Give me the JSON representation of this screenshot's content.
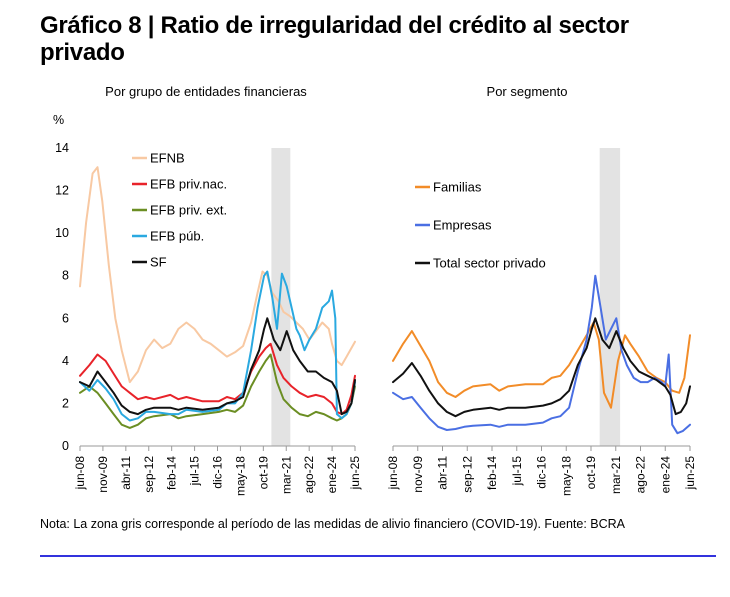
{
  "figure": {
    "title": "Gráfico 8 | Ratio de irregularidad del crédito al sector privado",
    "note": "Nota: La zona gris corresponde al período de las medidas de alivio financiero (COVID-19). Fuente: BCRA"
  },
  "chart_data": [
    {
      "type": "line",
      "subtitle": "Por grupo de entidades financieras",
      "yunit": "%",
      "ylim": [
        0,
        14
      ],
      "yticks": [
        "0",
        "2",
        "4",
        "6",
        "8",
        "10",
        "12",
        "14"
      ],
      "xlim": [
        2008.42,
        2025.42
      ],
      "xticks": [
        "jun-08",
        "nov-09",
        "abr-11",
        "sep-12",
        "feb-14",
        "jul-15",
        "dic-16",
        "may-18",
        "oct-19",
        "mar-21",
        "ago-22",
        "ene-24",
        "jun-25"
      ],
      "shaded_period": [
        2020.25,
        2021.42
      ],
      "grid": false,
      "legend_position": "top-left",
      "series": [
        {
          "name": "EFNB",
          "color": "#f8c9a3",
          "x": [
            2008.42,
            2008.8,
            2009.2,
            2009.5,
            2009.8,
            2010.2,
            2010.6,
            2011.0,
            2011.5,
            2012.0,
            2012.5,
            2013.0,
            2013.5,
            2014.0,
            2014.5,
            2015.0,
            2015.5,
            2016.0,
            2016.5,
            2017.0,
            2017.5,
            2018.0,
            2018.5,
            2019.0,
            2019.4,
            2019.7,
            2020.0,
            2020.3,
            2020.7,
            2021.0,
            2021.4,
            2021.8,
            2022.2,
            2022.6,
            2023.0,
            2023.4,
            2023.8,
            2024.0,
            2024.3,
            2024.6,
            2024.9,
            2025.2,
            2025.42
          ],
          "values": [
            7.5,
            10.5,
            12.8,
            13.1,
            11.5,
            8.5,
            6.0,
            4.5,
            3.0,
            3.5,
            4.5,
            5.0,
            4.6,
            4.8,
            5.5,
            5.8,
            5.5,
            5.0,
            4.8,
            4.5,
            4.2,
            4.4,
            4.7,
            5.8,
            7.2,
            8.2,
            8.0,
            7.2,
            6.8,
            6.3,
            6.1,
            5.8,
            5.5,
            5.0,
            5.4,
            5.8,
            5.5,
            4.8,
            4.0,
            3.8,
            4.2,
            4.6,
            4.9
          ]
        },
        {
          "name": "EFB priv.nac.",
          "color": "#e8232a",
          "x": [
            2008.42,
            2009.0,
            2009.5,
            2010.0,
            2010.5,
            2011.0,
            2011.5,
            2012.0,
            2012.5,
            2013.0,
            2014.0,
            2014.5,
            2015.0,
            2016.0,
            2017.0,
            2017.5,
            2018.0,
            2018.5,
            2019.0,
            2019.5,
            2019.9,
            2020.2,
            2020.6,
            2021.0,
            2021.5,
            2022.0,
            2022.5,
            2023.0,
            2023.5,
            2024.0,
            2024.3,
            2024.6,
            2024.9,
            2025.2,
            2025.42
          ],
          "values": [
            3.3,
            3.8,
            4.3,
            4.0,
            3.4,
            2.8,
            2.5,
            2.2,
            2.3,
            2.2,
            2.4,
            2.2,
            2.3,
            2.1,
            2.1,
            2.3,
            2.2,
            2.5,
            3.5,
            4.2,
            4.6,
            4.8,
            3.8,
            3.2,
            2.8,
            2.5,
            2.3,
            2.4,
            2.3,
            2.0,
            1.6,
            1.5,
            1.7,
            2.4,
            3.3
          ]
        },
        {
          "name": "EFB priv. ext.",
          "color": "#6b8e23",
          "x": [
            2008.42,
            2009.0,
            2009.5,
            2010.0,
            2010.5,
            2011.0,
            2011.5,
            2012.0,
            2012.5,
            2013.0,
            2014.0,
            2014.5,
            2015.0,
            2016.0,
            2017.0,
            2017.5,
            2018.0,
            2018.5,
            2019.0,
            2019.5,
            2019.9,
            2020.2,
            2020.6,
            2021.0,
            2021.5,
            2022.0,
            2022.5,
            2023.0,
            2023.5,
            2024.0,
            2024.3,
            2024.6,
            2024.9,
            2025.2,
            2025.42
          ],
          "values": [
            2.5,
            2.8,
            2.5,
            2.0,
            1.5,
            1.0,
            0.85,
            1.0,
            1.3,
            1.4,
            1.5,
            1.3,
            1.4,
            1.5,
            1.6,
            1.7,
            1.6,
            1.9,
            2.8,
            3.5,
            4.0,
            4.3,
            3.0,
            2.2,
            1.8,
            1.5,
            1.4,
            1.6,
            1.5,
            1.3,
            1.2,
            1.3,
            1.5,
            2.0,
            2.8
          ]
        },
        {
          "name": "EFB púb.",
          "color": "#2aa9e0",
          "x": [
            2008.42,
            2009.0,
            2009.5,
            2010.0,
            2010.5,
            2011.0,
            2011.5,
            2012.0,
            2012.5,
            2013.0,
            2014.0,
            2014.5,
            2015.0,
            2016.0,
            2017.0,
            2017.5,
            2018.0,
            2018.5,
            2019.0,
            2019.4,
            2019.8,
            2020.0,
            2020.3,
            2020.6,
            2020.9,
            2021.2,
            2021.5,
            2021.8,
            2022.0,
            2022.3,
            2022.6,
            2023.0,
            2023.4,
            2023.8,
            2024.0,
            2024.2,
            2024.3,
            2024.6,
            2024.9,
            2025.2,
            2025.42
          ],
          "values": [
            3.0,
            2.6,
            3.1,
            2.7,
            2.2,
            1.5,
            1.2,
            1.3,
            1.6,
            1.6,
            1.5,
            1.5,
            1.7,
            1.6,
            1.7,
            2.0,
            2.0,
            2.5,
            4.5,
            6.5,
            8.0,
            8.2,
            7.0,
            5.5,
            8.1,
            7.5,
            6.5,
            5.5,
            5.2,
            4.5,
            5.0,
            5.5,
            6.5,
            6.8,
            7.3,
            6.0,
            1.5,
            1.3,
            1.5,
            2.0,
            3.0
          ]
        },
        {
          "name": "SF",
          "color": "#111111",
          "x": [
            2008.42,
            2009.0,
            2009.5,
            2010.0,
            2010.5,
            2011.0,
            2011.5,
            2012.0,
            2012.5,
            2013.0,
            2014.0,
            2014.5,
            2015.0,
            2016.0,
            2017.0,
            2017.5,
            2018.0,
            2018.5,
            2019.0,
            2019.5,
            2019.8,
            2020.0,
            2020.4,
            2020.8,
            2021.2,
            2021.6,
            2022.0,
            2022.5,
            2023.0,
            2023.5,
            2024.0,
            2024.3,
            2024.6,
            2024.9,
            2025.2,
            2025.42
          ],
          "values": [
            3.0,
            2.8,
            3.5,
            3.0,
            2.5,
            1.9,
            1.6,
            1.5,
            1.7,
            1.8,
            1.8,
            1.7,
            1.8,
            1.7,
            1.8,
            2.0,
            2.1,
            2.3,
            3.6,
            4.5,
            5.5,
            6.0,
            5.0,
            4.5,
            5.4,
            4.5,
            4.0,
            3.5,
            3.5,
            3.2,
            3.0,
            2.6,
            1.5,
            1.6,
            2.0,
            3.1
          ]
        }
      ]
    },
    {
      "type": "line",
      "subtitle": "Por segmento",
      "ylim": [
        0,
        14
      ],
      "xlim": [
        2008.42,
        2025.42
      ],
      "xticks": [
        "jun-08",
        "nov-09",
        "abr-11",
        "sep-12",
        "feb-14",
        "jul-15",
        "dic-16",
        "may-18",
        "oct-19",
        "mar-21",
        "ago-22",
        "ene-24",
        "jun-25"
      ],
      "shaded_period": [
        2020.25,
        2021.42
      ],
      "grid": false,
      "legend_position": "top-left",
      "series": [
        {
          "name": "Familias",
          "color": "#f28c28",
          "x": [
            2008.42,
            2009.0,
            2009.5,
            2010.0,
            2010.5,
            2011.0,
            2011.5,
            2012.0,
            2012.5,
            2013.0,
            2014.0,
            2014.5,
            2015.0,
            2016.0,
            2017.0,
            2017.5,
            2018.0,
            2018.5,
            2019.0,
            2019.5,
            2019.9,
            2020.2,
            2020.5,
            2020.9,
            2021.3,
            2021.7,
            2022.0,
            2022.5,
            2023.0,
            2023.5,
            2024.0,
            2024.4,
            2024.8,
            2025.1,
            2025.42
          ],
          "values": [
            4.0,
            4.8,
            5.4,
            4.7,
            4.0,
            3.0,
            2.5,
            2.3,
            2.6,
            2.8,
            2.9,
            2.6,
            2.8,
            2.9,
            2.9,
            3.2,
            3.3,
            3.8,
            4.5,
            5.2,
            5.8,
            5.0,
            2.5,
            1.8,
            4.0,
            5.2,
            4.8,
            4.2,
            3.5,
            3.2,
            3.0,
            2.6,
            2.5,
            3.2,
            5.2
          ]
        },
        {
          "name": "Empresas",
          "color": "#4a6fe3",
          "x": [
            2008.42,
            2009.0,
            2009.5,
            2010.0,
            2010.5,
            2011.0,
            2011.5,
            2012.0,
            2012.5,
            2013.0,
            2014.0,
            2014.5,
            2015.0,
            2016.0,
            2017.0,
            2017.5,
            2018.0,
            2018.5,
            2019.0,
            2019.5,
            2019.8,
            2020.0,
            2020.3,
            2020.6,
            2020.9,
            2021.2,
            2021.5,
            2021.8,
            2022.2,
            2022.6,
            2023.0,
            2023.4,
            2023.8,
            2024.0,
            2024.2,
            2024.4,
            2024.7,
            2025.0,
            2025.42
          ],
          "values": [
            2.5,
            2.2,
            2.3,
            1.8,
            1.3,
            0.9,
            0.75,
            0.8,
            0.9,
            0.95,
            1.0,
            0.9,
            1.0,
            1.0,
            1.1,
            1.3,
            1.4,
            1.8,
            3.5,
            5.0,
            6.5,
            8.0,
            6.5,
            5.0,
            5.5,
            6.0,
            4.5,
            3.8,
            3.2,
            3.0,
            3.0,
            3.2,
            3.0,
            2.8,
            4.3,
            1.0,
            0.6,
            0.7,
            1.0
          ]
        },
        {
          "name": "Total sector privado",
          "color": "#111111",
          "x": [
            2008.42,
            2009.0,
            2009.5,
            2010.0,
            2010.5,
            2011.0,
            2011.5,
            2012.0,
            2012.5,
            2013.0,
            2014.0,
            2014.5,
            2015.0,
            2016.0,
            2017.0,
            2017.5,
            2018.0,
            2018.5,
            2019.0,
            2019.5,
            2019.8,
            2020.0,
            2020.4,
            2020.8,
            2021.2,
            2021.6,
            2022.0,
            2022.5,
            2023.0,
            2023.5,
            2024.0,
            2024.3,
            2024.6,
            2024.9,
            2025.2,
            2025.42
          ],
          "values": [
            3.0,
            3.4,
            3.9,
            3.3,
            2.6,
            2.0,
            1.6,
            1.4,
            1.6,
            1.7,
            1.8,
            1.7,
            1.8,
            1.8,
            1.9,
            2.0,
            2.2,
            2.6,
            3.8,
            4.6,
            5.5,
            6.0,
            5.0,
            4.6,
            5.4,
            4.6,
            4.0,
            3.5,
            3.3,
            3.1,
            2.8,
            2.4,
            1.5,
            1.6,
            2.0,
            2.8
          ]
        }
      ]
    }
  ]
}
